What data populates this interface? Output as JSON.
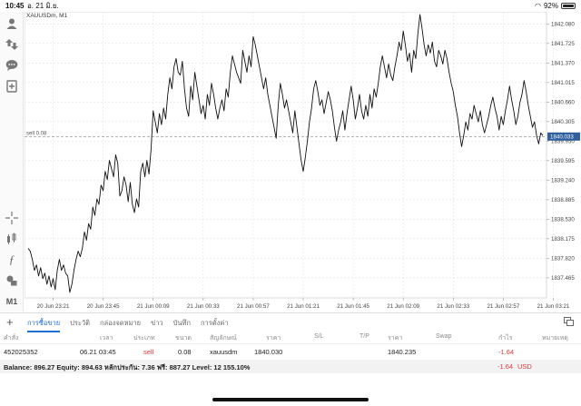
{
  "status_bar": {
    "time": "10:45",
    "date": "อ. 21 มิ.ย.",
    "battery": "92%",
    "battery_level": 0.92
  },
  "chart_header": {
    "symbol_label": "XAUUSDm, M1"
  },
  "toolbar": {
    "icons": [
      "account-icon",
      "trade-arrows-icon",
      "chat-icon",
      "new-order-icon",
      "crosshair-icon",
      "indicators-icon",
      "function-icon",
      "objects-icon"
    ],
    "timeframe": "M1"
  },
  "chart_data": {
    "type": "line",
    "symbol": "XAUUSDm",
    "timeframe": "M1",
    "ylim": [
      1837.1,
      1842.3
    ],
    "y_ticks": [
      "1842.080",
      "1841.725",
      "1841.370",
      "1841.015",
      "1840.660",
      "1840.305",
      "1839.950",
      "1839.595",
      "1839.240",
      "1838.885",
      "1838.530",
      "1838.175",
      "1837.820",
      "1837.465"
    ],
    "y_tick_values": [
      1842.08,
      1841.725,
      1841.37,
      1841.015,
      1840.66,
      1840.305,
      1839.95,
      1839.595,
      1839.24,
      1838.885,
      1838.53,
      1838.175,
      1837.82,
      1837.465
    ],
    "x_ticks": [
      "20 Jun 23:21",
      "20 Jun 23:45",
      "21 Jun 00:09",
      "21 Jun 00:33",
      "21 Jun 00:57",
      "21 Jun 01:21",
      "21 Jun 01:45",
      "21 Jun 02:09",
      "21 Jun 02:33",
      "21 Jun 02:57",
      "21 Jun 03:21",
      "21 Jun 03:45"
    ],
    "x_tick_index": [
      12,
      36,
      60,
      84,
      108,
      132,
      156,
      180,
      204,
      228,
      252,
      276
    ],
    "current_price": "1840.033",
    "current_price_value": 1840.033,
    "order_line_label": "sell 0.08",
    "order_line_value": 1840.03,
    "grid": true,
    "values": [
      1838.0,
      1837.95,
      1837.8,
      1837.6,
      1837.7,
      1837.5,
      1837.65,
      1837.45,
      1837.55,
      1837.35,
      1837.5,
      1837.3,
      1837.45,
      1837.25,
      1837.6,
      1837.8,
      1837.6,
      1837.7,
      1837.55,
      1837.5,
      1837.2,
      1837.35,
      1837.6,
      1837.8,
      1837.95,
      1837.85,
      1838.0,
      1838.3,
      1838.15,
      1838.45,
      1838.35,
      1838.75,
      1838.6,
      1838.9,
      1838.8,
      1839.15,
      1839.05,
      1839.4,
      1839.25,
      1839.6,
      1839.45,
      1839.3,
      1839.7,
      1839.55,
      1838.95,
      1839.05,
      1839.3,
      1839.15,
      1838.85,
      1839.2,
      1838.8,
      1838.65,
      1838.9,
      1838.75,
      1839.4,
      1839.55,
      1839.3,
      1839.6,
      1839.35,
      1839.8,
      1840.5,
      1840.3,
      1840.1,
      1840.45,
      1840.25,
      1840.55,
      1840.35,
      1840.8,
      1841.1,
      1840.9,
      1841.3,
      1841.45,
      1841.2,
      1841.15,
      1841.4,
      1840.9,
      1840.55,
      1840.4,
      1840.95,
      1840.7,
      1841.2,
      1840.95,
      1840.7,
      1840.45,
      1840.6,
      1840.35,
      1840.8,
      1840.6,
      1841.0,
      1840.8,
      1840.55,
      1840.35,
      1840.55,
      1840.7,
      1840.5,
      1840.9,
      1840.75,
      1841.2,
      1841.5,
      1841.35,
      1841.2,
      1841.1,
      1841.0,
      1841.6,
      1841.4,
      1841.2,
      1841.5,
      1841.3,
      1841.85,
      1841.7,
      1841.5,
      1841.3,
      1841.1,
      1840.9,
      1841.1,
      1840.8,
      1840.6,
      1840.4,
      1840.2,
      1840.0,
      1840.6,
      1841.0,
      1840.8,
      1840.55,
      1840.7,
      1840.5,
      1840.3,
      1840.1,
      1840.5,
      1840.2,
      1839.9,
      1839.6,
      1839.4,
      1839.65,
      1839.95,
      1840.3,
      1840.55,
      1840.9,
      1841.05,
      1840.85,
      1840.6,
      1840.7,
      1840.45,
      1840.65,
      1840.85,
      1840.7,
      1840.5,
      1840.2,
      1839.95,
      1840.15,
      1840.3,
      1840.5,
      1840.15,
      1840.45,
      1840.7,
      1840.95,
      1840.7,
      1840.35,
      1840.55,
      1840.8,
      1840.5,
      1840.35,
      1840.6,
      1840.4,
      1840.8,
      1840.55,
      1840.9,
      1840.75,
      1841.0,
      1841.3,
      1841.5,
      1841.3,
      1841.1,
      1841.35,
      1841.15,
      1841.05,
      1841.3,
      1841.5,
      1841.75,
      1841.6,
      1841.95,
      1841.7,
      1841.4,
      1841.55,
      1841.2,
      1841.6,
      1841.45,
      1841.9,
      1842.25,
      1842.0,
      1841.7,
      1841.5,
      1841.7,
      1841.55,
      1841.75,
      1841.4,
      1841.3,
      1841.6,
      1841.5,
      1841.35,
      1841.6,
      1841.45,
      1841.2,
      1841.0,
      1840.85,
      1840.6,
      1840.4,
      1840.1,
      1839.85,
      1840.05,
      1840.3,
      1840.15,
      1840.45,
      1840.35,
      1840.6,
      1840.45,
      1840.3,
      1840.5,
      1840.25,
      1840.1,
      1840.25,
      1840.4,
      1840.6,
      1840.75,
      1840.55,
      1840.4,
      1840.15,
      1840.4,
      1840.25,
      1840.5,
      1840.7,
      1840.95,
      1840.7,
      1840.5,
      1840.25,
      1840.4,
      1840.65,
      1840.8,
      1841.05,
      1840.85,
      1840.6,
      1840.4,
      1840.2,
      1840.3,
      1840.05,
      1839.9,
      1840.1,
      1840.05
    ]
  },
  "tabs": [
    "การซื้อขาย",
    "ประวัติ",
    "กล่องจดหมาย",
    "ข่าว",
    "บันทึก",
    "การตั้งค่า"
  ],
  "table": {
    "headers": [
      "คำสั่ง",
      "เวลา",
      "ประเภท",
      "ขนาด",
      "สัญลักษณ์",
      "ราคา",
      "S/L",
      "T/P",
      "ราคา",
      "Swap",
      "กำไร",
      "หมายเหตุ"
    ],
    "rows": [
      {
        "order": "452025352",
        "time": "06.21 03:45",
        "type": "sell",
        "size": "0.08",
        "symbol": "xauusdm",
        "open_price": "1840.030",
        "sl": "",
        "tp": "",
        "price": "1840.235",
        "swap": "",
        "profit": "-1.64",
        "comment": ""
      }
    ]
  },
  "balance": {
    "text": "Balance: 896.27 Equity: 894.63 หลักประกัน: 7.36 ฟรี: 887.27 Level: 12 155.10%",
    "profit": "-1.64",
    "currency": "USD"
  },
  "colors": {
    "accent": "#1e6fd6",
    "loss": "#e03a3a",
    "price_label_bg": "#2f5f9e"
  }
}
